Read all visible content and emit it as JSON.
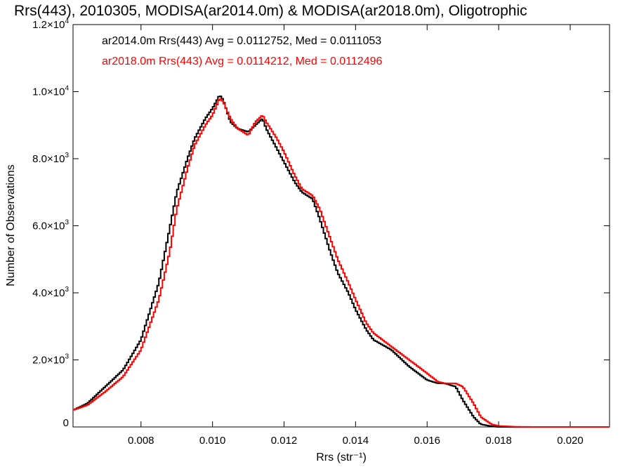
{
  "chart_data": {
    "type": "line",
    "style": "histogram-step",
    "title": "Rrs(443), 2010305, MODISA(ar2014.0m) & MODISA(ar2018.0m), Oligotrophic",
    "xlabel": "Rrs (str⁻¹)",
    "ylabel": "Number of Observations",
    "xlim": [
      0.0061,
      0.0211
    ],
    "ylim": [
      0,
      12000
    ],
    "x_ticks": [
      0.008,
      0.01,
      0.012,
      0.014,
      0.016,
      0.018,
      0.02
    ],
    "x_tick_labels": [
      "0.008",
      "0.010",
      "0.012",
      "0.014",
      "0.016",
      "0.018",
      "0.020"
    ],
    "y_ticks": [
      0,
      2000,
      4000,
      6000,
      8000,
      10000,
      12000
    ],
    "y_tick_labels": [
      {
        "mant": "0",
        "exp": ""
      },
      {
        "mant": "2.0×10",
        "exp": "3"
      },
      {
        "mant": "4.0×10",
        "exp": "3"
      },
      {
        "mant": "6.0×10",
        "exp": "3"
      },
      {
        "mant": "8.0×10",
        "exp": "3"
      },
      {
        "mant": "1.0×10",
        "exp": "4"
      },
      {
        "mant": "1.2×10",
        "exp": "4"
      }
    ],
    "grid": false,
    "legend_position": "top-left",
    "annotations": [
      "ar2014.0m Rrs(443) Avg = 0.0112752, Med = 0.0111053",
      "ar2018.0m Rrs(443) Avg = 0.0114212, Med = 0.0112496"
    ],
    "series": [
      {
        "color": "#000000",
        "x": [
          0.0061,
          0.0065,
          0.007,
          0.0075,
          0.008,
          0.0085,
          0.0088,
          0.009,
          0.0093,
          0.0095,
          0.0098,
          0.01,
          0.0102,
          0.0103,
          0.0105,
          0.0107,
          0.011,
          0.0112,
          0.0114,
          0.0115,
          0.0118,
          0.012,
          0.0123,
          0.0125,
          0.0128,
          0.013,
          0.0133,
          0.0135,
          0.0138,
          0.014,
          0.0143,
          0.0145,
          0.015,
          0.0155,
          0.016,
          0.0163,
          0.0165,
          0.0168,
          0.017,
          0.0173,
          0.0175,
          0.0178,
          0.018,
          0.0185,
          0.019,
          0.02,
          0.0211
        ],
        "y": [
          500,
          700,
          1200,
          1700,
          2600,
          4300,
          5900,
          7000,
          8000,
          8600,
          9200,
          9500,
          9900,
          9750,
          9100,
          8900,
          8800,
          9000,
          9200,
          8900,
          8300,
          7900,
          7300,
          7000,
          6800,
          6200,
          5200,
          4600,
          4000,
          3500,
          2900,
          2600,
          2300,
          1800,
          1400,
          1300,
          1300,
          1200,
          800,
          300,
          80,
          20,
          0,
          0,
          0,
          0,
          0
        ]
      },
      {
        "color": "#ff0000",
        "x": [
          0.0061,
          0.0065,
          0.007,
          0.0075,
          0.008,
          0.0085,
          0.0088,
          0.009,
          0.0093,
          0.0095,
          0.0098,
          0.01,
          0.0102,
          0.0103,
          0.0105,
          0.0107,
          0.011,
          0.0112,
          0.0114,
          0.0115,
          0.0118,
          0.012,
          0.0123,
          0.0125,
          0.0128,
          0.013,
          0.0133,
          0.0135,
          0.0138,
          0.014,
          0.0143,
          0.0145,
          0.015,
          0.0155,
          0.016,
          0.0163,
          0.0165,
          0.0168,
          0.017,
          0.0173,
          0.0175,
          0.0178,
          0.018,
          0.0185,
          0.019,
          0.02,
          0.0211
        ],
        "y": [
          500,
          650,
          1050,
          1500,
          2300,
          3800,
          5200,
          6500,
          7700,
          8400,
          9000,
          9300,
          9800,
          9700,
          9200,
          8900,
          8700,
          9100,
          9300,
          9100,
          8600,
          8200,
          7500,
          7100,
          6900,
          6500,
          5600,
          5000,
          4300,
          3800,
          3100,
          2800,
          2400,
          2000,
          1600,
          1350,
          1300,
          1300,
          1200,
          700,
          300,
          80,
          30,
          5,
          0,
          0,
          0
        ]
      }
    ]
  }
}
